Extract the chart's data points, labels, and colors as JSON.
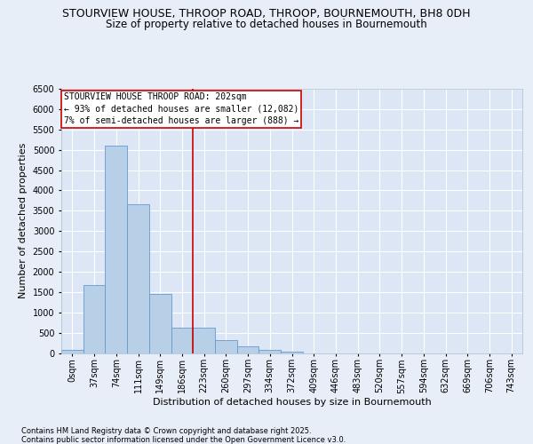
{
  "title_line1": "STOURVIEW HOUSE, THROOP ROAD, THROOP, BOURNEMOUTH, BH8 0DH",
  "title_line2": "Size of property relative to detached houses in Bournemouth",
  "xlabel": "Distribution of detached houses by size in Bournemouth",
  "ylabel": "Number of detached properties",
  "bar_labels": [
    "0sqm",
    "37sqm",
    "74sqm",
    "111sqm",
    "149sqm",
    "186sqm",
    "223sqm",
    "260sqm",
    "297sqm",
    "334sqm",
    "372sqm",
    "409sqm",
    "446sqm",
    "483sqm",
    "520sqm",
    "557sqm",
    "594sqm",
    "632sqm",
    "669sqm",
    "706sqm",
    "743sqm"
  ],
  "bar_values": [
    70,
    1670,
    5100,
    3650,
    1450,
    630,
    630,
    320,
    155,
    70,
    30,
    0,
    0,
    0,
    0,
    0,
    0,
    0,
    0,
    0,
    0
  ],
  "bar_color": "#b8cfe8",
  "bar_edgecolor": "#6699cc",
  "vline_x": 5.5,
  "vline_color": "#cc0000",
  "ylim": [
    0,
    6500
  ],
  "yticks": [
    0,
    500,
    1000,
    1500,
    2000,
    2500,
    3000,
    3500,
    4000,
    4500,
    5000,
    5500,
    6000,
    6500
  ],
  "bg_color": "#e8eef7",
  "plot_bg_color": "#dce6f5",
  "grid_color": "#ffffff",
  "annotation_text": "STOURVIEW HOUSE THROOP ROAD: 202sqm\n← 93% of detached houses are smaller (12,082)\n7% of semi-detached houses are larger (888) →",
  "annotation_box_color": "#ffffff",
  "annotation_box_edgecolor": "#cc0000",
  "footnote1": "Contains HM Land Registry data © Crown copyright and database right 2025.",
  "footnote2": "Contains public sector information licensed under the Open Government Licence v3.0.",
  "title_fontsize": 9,
  "subtitle_fontsize": 8.5,
  "axis_label_fontsize": 8,
  "tick_fontsize": 7,
  "annotation_fontsize": 7
}
